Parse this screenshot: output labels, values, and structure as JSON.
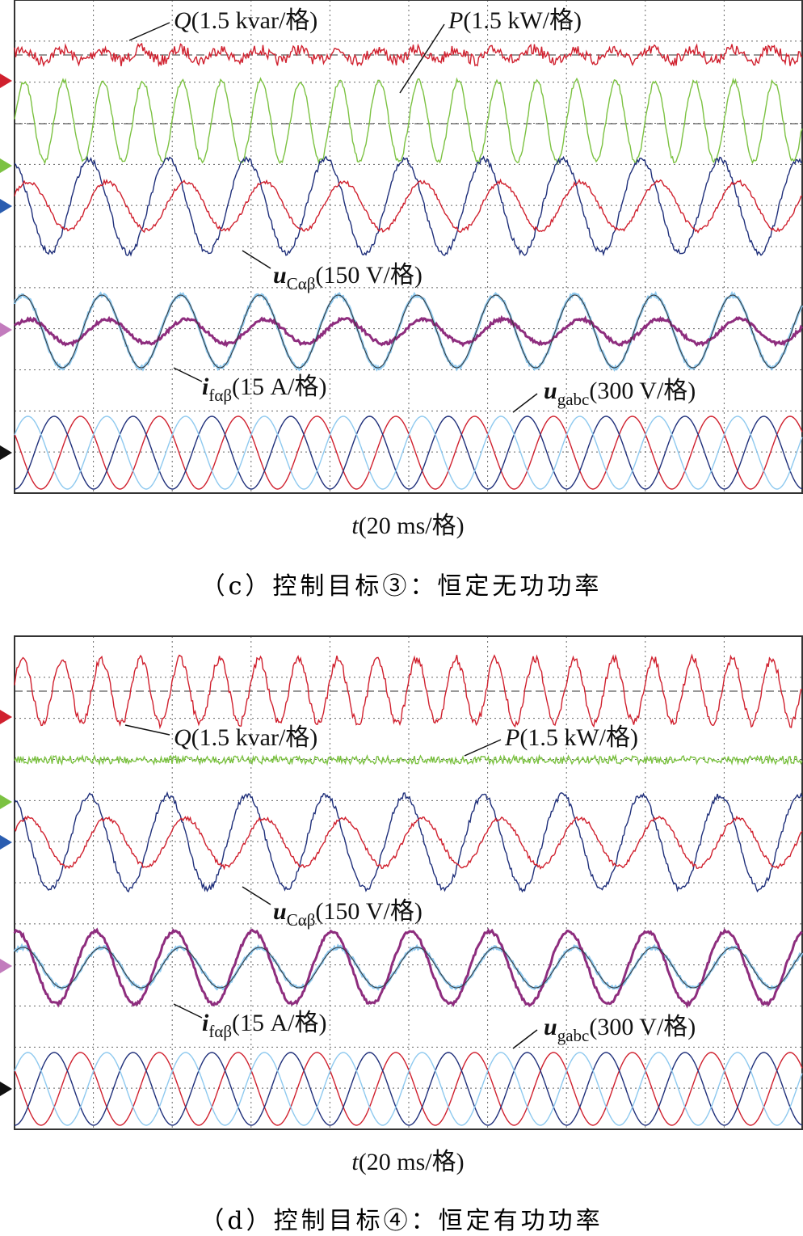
{
  "panels": [
    {
      "labels": {
        "q": {
          "symbol": "Q",
          "unit": "(1.5 kvar/格)"
        },
        "p": {
          "symbol": "P",
          "unit": "(1.5 kW/格)"
        },
        "uc": {
          "symbol": "u",
          "subscript": "Cαβ",
          "unit": "(150 V/格)"
        },
        "if": {
          "symbol": "i",
          "subscript": "fαβ",
          "unit": "(15 A/格)"
        },
        "ug": {
          "symbol": "u",
          "subscript": "gabc",
          "unit": "(300 V/格)"
        }
      },
      "time_axis": {
        "symbol": "t",
        "unit": "(20 ms/格)"
      },
      "caption": "（c）控制目标③：恒定无功功率"
    },
    {
      "labels": {
        "q": {
          "symbol": "Q",
          "unit": "(1.5 kvar/格)"
        },
        "p": {
          "symbol": "P",
          "unit": "(1.5 kW/格)"
        },
        "uc": {
          "symbol": "u",
          "subscript": "Cαβ",
          "unit": "(150 V/格)"
        },
        "if": {
          "symbol": "i",
          "subscript": "fαβ",
          "unit": "(15 A/格)"
        },
        "ug": {
          "symbol": "u",
          "subscript": "gabc",
          "unit": "(300 V/格)"
        }
      },
      "time_axis": {
        "symbol": "t",
        "unit": "(20 ms/格)"
      },
      "caption": "（d）控制目标④：恒定有功功率"
    }
  ]
}
